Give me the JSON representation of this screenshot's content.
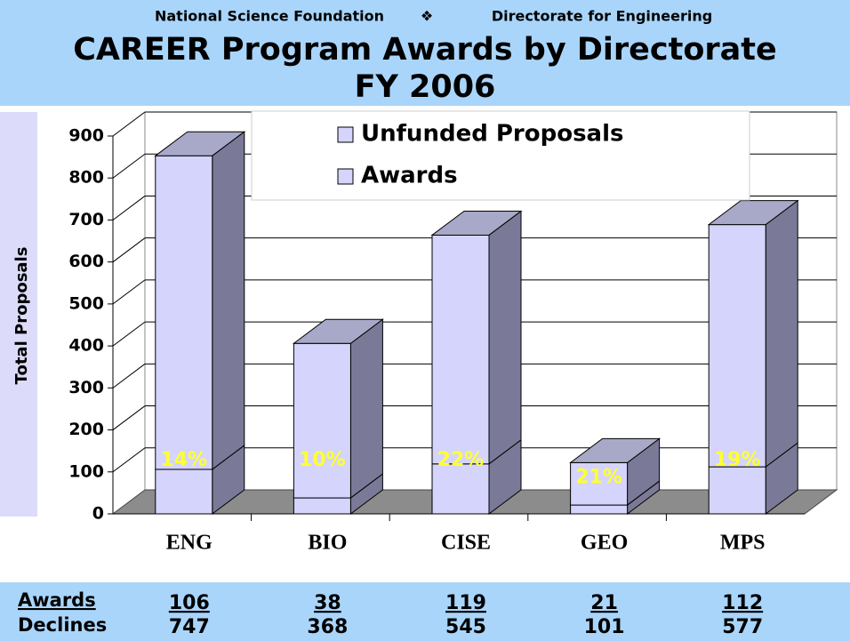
{
  "header": {
    "left": "National Science Foundation",
    "separator": "❖",
    "right": "Directorate for Engineering"
  },
  "chart_data": {
    "type": "bar3d_stacked",
    "title": "CAREER Program Awards by Directorate",
    "subtitle": "FY 2006",
    "ylabel": "Total Proposals",
    "categories": [
      "ENG",
      "BIO",
      "CISE",
      "GEO",
      "MPS"
    ],
    "series": [
      {
        "name": "Awards",
        "color": "#d4d4fc",
        "values": [
          106,
          38,
          119,
          21,
          112
        ]
      },
      {
        "name": "Unfunded Proposals",
        "color": "#d4d4fc",
        "values": [
          747,
          368,
          545,
          101,
          577
        ]
      }
    ],
    "rate_labels": [
      "14%",
      "10%",
      "22%",
      "21%",
      "19%"
    ],
    "ylim": [
      0,
      900
    ],
    "yticks": [
      0,
      100,
      200,
      300,
      400,
      500,
      600,
      700,
      800,
      900
    ],
    "grid": true
  },
  "table_row_labels": [
    "Awards",
    "Declines"
  ]
}
